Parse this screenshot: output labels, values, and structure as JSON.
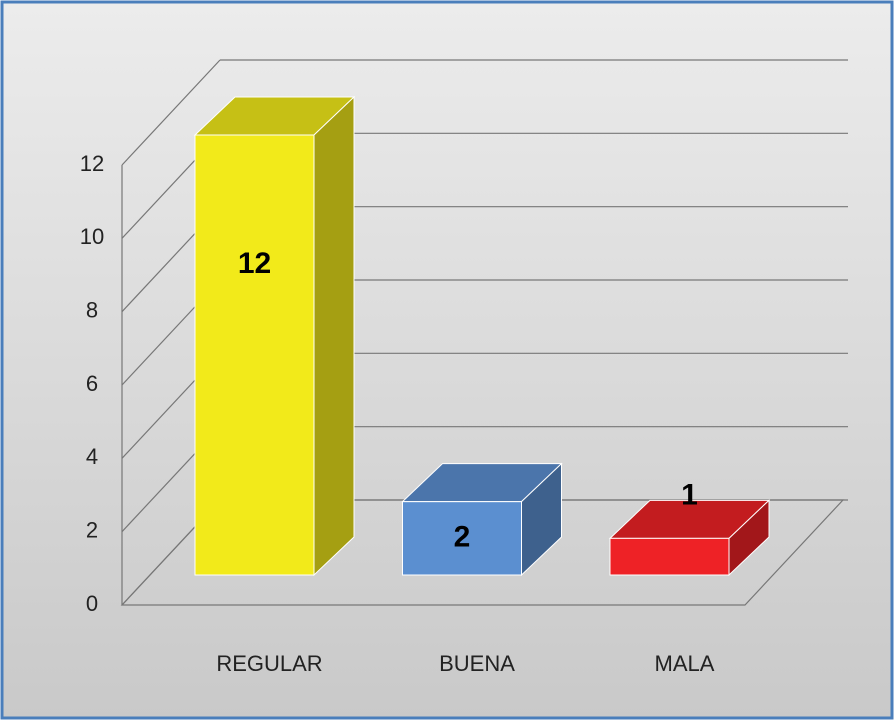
{
  "chart_data": {
    "type": "bar3d",
    "categories": [
      "REGULAR",
      "BUENA",
      "MALA"
    ],
    "values": [
      12,
      2,
      1
    ],
    "colors": [
      "#f2ea1a",
      "#5b8fd0",
      "#ee2226"
    ],
    "ylim": [
      0,
      12
    ],
    "yticks": [
      0,
      2,
      4,
      6,
      8,
      10,
      12
    ],
    "grid": true
  }
}
